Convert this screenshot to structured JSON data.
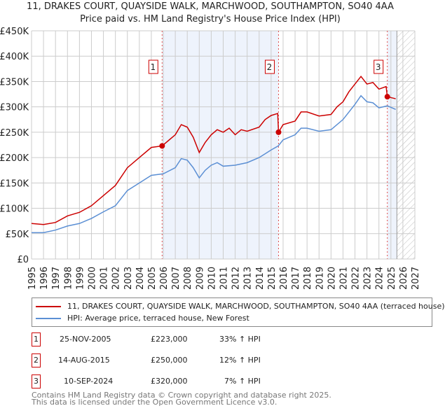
{
  "title": "11, DRAKES COURT, QUAYSIDE WALK, MARCHWOOD, SOUTHAMPTON, SO40 4AA",
  "subtitle": "Price paid vs. HM Land Registry's House Price Index (HPI)",
  "chart_data": {
    "type": "line",
    "ylabel": "",
    "xlabel": "",
    "xlim": [
      1995,
      2027
    ],
    "ylim": [
      0,
      450000
    ],
    "yticks": [
      "£0",
      "£50K",
      "£100K",
      "£150K",
      "£200K",
      "£250K",
      "£300K",
      "£350K",
      "£400K",
      "£450K"
    ],
    "xticks": [
      "1995",
      "1996",
      "1997",
      "1998",
      "1999",
      "2000",
      "2001",
      "2002",
      "2003",
      "2004",
      "2005",
      "2006",
      "2007",
      "2008",
      "2009",
      "2010",
      "2011",
      "2012",
      "2013",
      "2014",
      "2015",
      "2016",
      "2017",
      "2018",
      "2019",
      "2020",
      "2021",
      "2022",
      "2023",
      "2024",
      "2025",
      "2026",
      "2027"
    ],
    "grid": true,
    "colors": {
      "property": "#cc0000",
      "hpi": "#5b8fd4"
    },
    "series": [
      {
        "name": "11, DRAKES COURT, QUAYSIDE WALK, MARCHWOOD, SOUTHAMPTON, SO40 4AA (terraced house)",
        "x": [
          1995,
          1996,
          1997,
          1998,
          1999,
          2000,
          2001,
          2002,
          2003,
          2004,
          2005,
          2005.9,
          2006.5,
          2007,
          2007.5,
          2008,
          2008.5,
          2009,
          2009.5,
          2010,
          2010.5,
          2011,
          2011.5,
          2012,
          2012.5,
          2013,
          2014,
          2014.5,
          2015,
          2015.55,
          2015.62,
          2016,
          2017,
          2017.5,
          2018,
          2019,
          2020,
          2020.5,
          2021,
          2021.5,
          2022,
          2022.5,
          2023,
          2023.5,
          2024,
          2024.6,
          2024.7,
          2025.4
        ],
        "y": [
          70000,
          68000,
          72000,
          85000,
          92000,
          105000,
          125000,
          145000,
          180000,
          200000,
          220000,
          223000,
          235000,
          245000,
          265000,
          260000,
          240000,
          210000,
          230000,
          245000,
          255000,
          250000,
          258000,
          245000,
          255000,
          252000,
          260000,
          275000,
          283000,
          287000,
          250000,
          265000,
          272000,
          290000,
          290000,
          282000,
          285000,
          300000,
          310000,
          330000,
          345000,
          360000,
          345000,
          348000,
          335000,
          340000,
          320000,
          316000
        ]
      },
      {
        "name": "HPI: Average price, terraced house, New Forest",
        "x": [
          1995,
          1996,
          1997,
          1998,
          1999,
          2000,
          2001,
          2002,
          2003,
          2004,
          2005,
          2006,
          2007,
          2007.5,
          2008,
          2008.5,
          2009,
          2009.5,
          2010,
          2010.5,
          2011,
          2012,
          2013,
          2014,
          2015,
          2015.6,
          2016,
          2017,
          2017.5,
          2018,
          2019,
          2020,
          2021,
          2021.5,
          2022,
          2022.5,
          2023,
          2023.5,
          2024,
          2024.7,
          2025.4
        ],
        "y": [
          52000,
          52000,
          57000,
          65000,
          70000,
          80000,
          93000,
          105000,
          135000,
          150000,
          165000,
          168000,
          180000,
          198000,
          195000,
          180000,
          160000,
          175000,
          185000,
          190000,
          183000,
          185000,
          190000,
          200000,
          215000,
          223000,
          235000,
          245000,
          258000,
          258000,
          252000,
          255000,
          275000,
          290000,
          305000,
          322000,
          310000,
          308000,
          298000,
          302000,
          295000
        ]
      }
    ],
    "sales": [
      {
        "label": "1",
        "date": "25-NOV-2005",
        "x": 2005.9,
        "price": "£223,000",
        "value": 223000,
        "hpi": "33% ↑ HPI"
      },
      {
        "label": "2",
        "date": "14-AUG-2015",
        "x": 2015.62,
        "price": "£250,000",
        "value": 250000,
        "hpi": "12% ↑ HPI"
      },
      {
        "label": "3",
        "date": "10-SEP-2024",
        "x": 2024.7,
        "price": "£320,000",
        "value": 320000,
        "hpi": "7% ↑ HPI"
      }
    ]
  },
  "legend": {
    "property": "11, DRAKES COURT, QUAYSIDE WALK, MARCHWOOD, SOUTHAMPTON, SO40 4AA (terraced house)",
    "hpi": "HPI: Average price, terraced house, New Forest"
  },
  "footer": {
    "line1": "Contains HM Land Registry data © Crown copyright and database right 2025.",
    "line2": "This data is licensed under the Open Government Licence v3.0."
  }
}
